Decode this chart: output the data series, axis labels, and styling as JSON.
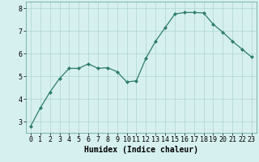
{
  "x": [
    0,
    1,
    2,
    3,
    4,
    5,
    6,
    7,
    8,
    9,
    10,
    11,
    12,
    13,
    14,
    15,
    16,
    17,
    18,
    19,
    20,
    21,
    22,
    23
  ],
  "y": [
    2.8,
    3.6,
    4.3,
    4.9,
    5.35,
    5.35,
    5.55,
    5.35,
    5.38,
    5.2,
    4.75,
    4.8,
    5.8,
    6.55,
    7.15,
    7.75,
    7.82,
    7.82,
    7.8,
    7.3,
    6.95,
    6.55,
    6.2,
    5.85
  ],
  "line_color": "#2e7d6e",
  "marker": "D",
  "marker_size": 2,
  "bg_color": "#d6f0ef",
  "grid_color": "#aed4d0",
  "xlabel": "Humidex (Indice chaleur)",
  "xlabel_fontsize": 7,
  "tick_fontsize": 6,
  "ylim": [
    2.5,
    8.3
  ],
  "xlim": [
    -0.5,
    23.5
  ],
  "yticks": [
    3,
    4,
    5,
    6,
    7,
    8
  ],
  "xticks": [
    0,
    1,
    2,
    3,
    4,
    5,
    6,
    7,
    8,
    9,
    10,
    11,
    12,
    13,
    14,
    15,
    16,
    17,
    18,
    19,
    20,
    21,
    22,
    23
  ]
}
